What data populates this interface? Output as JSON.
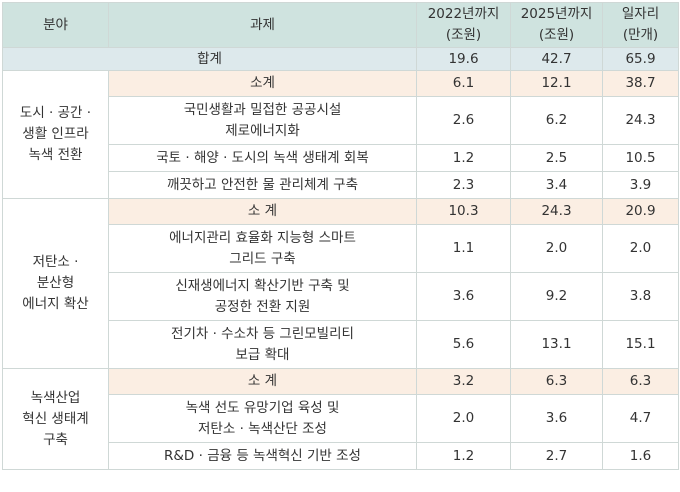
{
  "headers": {
    "category": "분야",
    "task": "과제",
    "col2022_line1": "2022년까지",
    "col2022_line2": "(조원)",
    "col2025_line1": "2025년까지",
    "col2025_line2": "(조원)",
    "jobs_line1": "일자리",
    "jobs_line2": "(만개)"
  },
  "total": {
    "label": "합계",
    "v2022": "19.6",
    "v2025": "42.7",
    "jobs": "65.9"
  },
  "groups": [
    {
      "category": [
        "도시 · 공간 ·",
        "생활 인프라",
        "녹색 전환"
      ],
      "subtotal": {
        "label": "소계",
        "v2022": "6.1",
        "v2025": "12.1",
        "jobs": "38.7"
      },
      "rows": [
        {
          "task": [
            "국민생활과 밀접한 공공시설",
            "제로에너지화"
          ],
          "v2022": "2.6",
          "v2025": "6.2",
          "jobs": "24.3"
        },
        {
          "task": [
            "국토 · 해양 · 도시의 녹색 생태계 회복"
          ],
          "v2022": "1.2",
          "v2025": "2.5",
          "jobs": "10.5"
        },
        {
          "task": [
            "깨끗하고 안전한 물 관리체계 구축"
          ],
          "v2022": "2.3",
          "v2025": "3.4",
          "jobs": "3.9"
        }
      ]
    },
    {
      "category": [
        "저탄소 ·",
        "분산형",
        "에너지 확산"
      ],
      "subtotal": {
        "label": "소 계",
        "v2022": "10.3",
        "v2025": "24.3",
        "jobs": "20.9"
      },
      "rows": [
        {
          "task": [
            "에너지관리 효율화 지능형 스마트",
            "그리드 구축"
          ],
          "v2022": "1.1",
          "v2025": "2.0",
          "jobs": "2.0"
        },
        {
          "task": [
            "신재생에너지 확산기반 구축 및",
            "공정한 전환 지원"
          ],
          "v2022": "3.6",
          "v2025": "9.2",
          "jobs": "3.8"
        },
        {
          "task": [
            "전기차 · 수소차 등 그린모빌리티",
            "보급 확대"
          ],
          "v2022": "5.6",
          "v2025": "13.1",
          "jobs": "15.1"
        }
      ]
    },
    {
      "category": [
        "녹색산업",
        "혁신 생태계",
        "구축"
      ],
      "subtotal": {
        "label": "소 계",
        "v2022": "3.2",
        "v2025": "6.3",
        "jobs": "6.3"
      },
      "rows": [
        {
          "task": [
            "녹색 선도 유망기업 육성 및",
            "저탄소 · 녹색산단 조성"
          ],
          "v2022": "2.0",
          "v2025": "3.6",
          "jobs": "4.7"
        },
        {
          "task": [
            "R&D · 금융 등 녹색혁신 기반 조성"
          ],
          "v2022": "1.2",
          "v2025": "2.7",
          "jobs": "1.6"
        }
      ]
    }
  ]
}
